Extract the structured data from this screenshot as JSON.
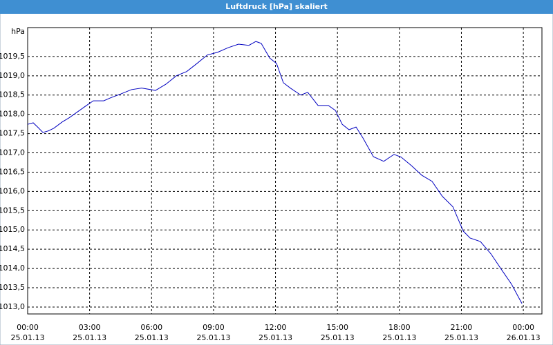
{
  "chart_data": {
    "type": "line",
    "title": "Luftdruck [hPa] skaliert",
    "y_unit": "hPa",
    "x": [
      0,
      0.27,
      0.5,
      0.74,
      1.0,
      1.27,
      1.67,
      2.01,
      2.51,
      2.85,
      3.18,
      3.68,
      4.02,
      4.52,
      5.02,
      5.52,
      6.19,
      6.69,
      7.2,
      7.7,
      8.2,
      8.7,
      9.2,
      9.71,
      10.21,
      10.71,
      11.05,
      11.31,
      11.72,
      12.05,
      12.38,
      12.72,
      13.22,
      13.56,
      14.06,
      14.56,
      14.9,
      15.23,
      15.56,
      15.9,
      16.23,
      16.74,
      17.24,
      17.74,
      18.08,
      18.58,
      19.08,
      19.58,
      20.08,
      20.59,
      21.09,
      21.42,
      21.92,
      22.43,
      22.93,
      23.43,
      23.93
    ],
    "series": [
      {
        "name": "Luftdruck",
        "color": "#0000c0",
        "values": [
          1017.74,
          1017.78,
          1017.66,
          1017.53,
          1017.57,
          1017.64,
          1017.8,
          1017.91,
          1018.1,
          1018.23,
          1018.35,
          1018.35,
          1018.43,
          1018.53,
          1018.64,
          1018.68,
          1018.62,
          1018.78,
          1019.0,
          1019.11,
          1019.32,
          1019.54,
          1019.61,
          1019.73,
          1019.82,
          1019.79,
          1019.89,
          1019.84,
          1019.46,
          1019.32,
          1018.82,
          1018.68,
          1018.5,
          1018.57,
          1018.23,
          1018.23,
          1018.1,
          1017.74,
          1017.6,
          1017.67,
          1017.39,
          1016.9,
          1016.78,
          1016.96,
          1016.89,
          1016.67,
          1016.42,
          1016.26,
          1015.87,
          1015.6,
          1014.97,
          1014.79,
          1014.7,
          1014.38,
          1013.98,
          1013.59,
          1013.09
        ]
      }
    ],
    "xlim": [
      0,
      24.9
    ],
    "xticks": [
      {
        "value": 0,
        "label": "00:00",
        "date": "25.01.13"
      },
      {
        "value": 3,
        "label": "03:00",
        "date": "25.01.13"
      },
      {
        "value": 6,
        "label": "06:00",
        "date": "25.01.13"
      },
      {
        "value": 9,
        "label": "09:00",
        "date": "25.01.13"
      },
      {
        "value": 12,
        "label": "12:00",
        "date": "25.01.13"
      },
      {
        "value": 15,
        "label": "15:00",
        "date": "25.01.13"
      },
      {
        "value": 18,
        "label": "18:00",
        "date": "25.01.13"
      },
      {
        "value": 21,
        "label": "21:00",
        "date": "25.01.13"
      },
      {
        "value": 24,
        "label": "00:00",
        "date": "26.01.13"
      }
    ],
    "ylim": [
      1012.82,
      1020.25
    ],
    "yticks": [
      {
        "value": 1013,
        "label": "1013,0"
      },
      {
        "value": 1013.5,
        "label": "1013,5"
      },
      {
        "value": 1014,
        "label": "1014,0"
      },
      {
        "value": 1014.5,
        "label": "1014,5"
      },
      {
        "value": 1015,
        "label": "1015,0"
      },
      {
        "value": 1015.5,
        "label": "1015,5"
      },
      {
        "value": 1016,
        "label": "1016,0"
      },
      {
        "value": 1016.5,
        "label": "1016,5"
      },
      {
        "value": 1017,
        "label": "1017,0"
      },
      {
        "value": 1017.5,
        "label": "1017,5"
      },
      {
        "value": 1018,
        "label": "1018,0"
      },
      {
        "value": 1018.5,
        "label": "1018,5"
      },
      {
        "value": 1019,
        "label": "1019,0"
      },
      {
        "value": 1019.5,
        "label": "1019,5"
      }
    ],
    "grid": true
  }
}
